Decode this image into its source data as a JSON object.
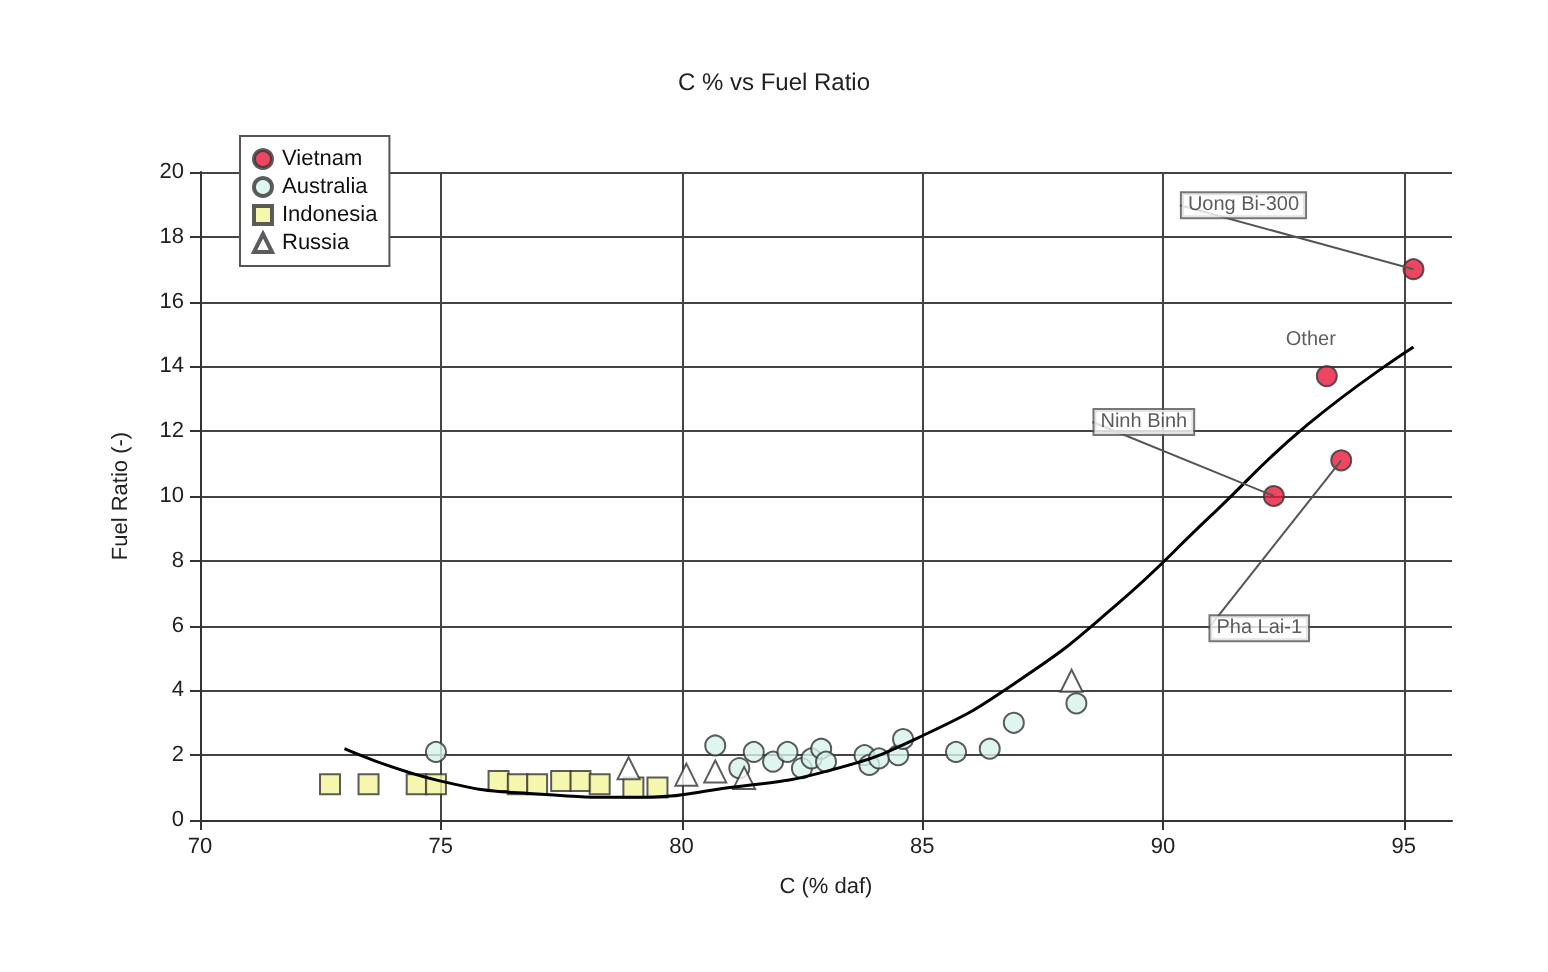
{
  "chart_data": {
    "type": "scatter",
    "title": "C % vs Fuel Ratio",
    "xlabel": "C (% daf)",
    "ylabel": "Fuel Ratio (-)",
    "xlim": [
      70,
      96
    ],
    "xticks": [
      70,
      75,
      80,
      85,
      90,
      95
    ],
    "ylim": [
      0,
      20
    ],
    "yticks": [
      0,
      2,
      4,
      6,
      8,
      10,
      12,
      14,
      16,
      18,
      20
    ],
    "grid": true,
    "legend": "top left",
    "series": [
      {
        "name": "Vietnam",
        "color": "#e8183a",
        "marker": "circle",
        "x": [
          95.2,
          93.4,
          92.3,
          93.7
        ],
        "values": [
          17.0,
          13.7,
          10.0,
          11.1
        ]
      },
      {
        "name": "Australia",
        "color": "#d6f2ec",
        "marker": "circle",
        "x": [
          74.9,
          80.7,
          81.2,
          81.5,
          81.9,
          82.2,
          82.5,
          82.7,
          82.9,
          83.0,
          83.8,
          83.9,
          84.1,
          84.5,
          84.6,
          85.7,
          86.4,
          86.9,
          88.2
        ],
        "values": [
          2.1,
          2.3,
          1.6,
          2.1,
          1.8,
          2.1,
          1.6,
          1.9,
          2.2,
          1.8,
          2.0,
          1.7,
          1.9,
          2.0,
          2.5,
          2.1,
          2.2,
          3.0,
          3.6
        ]
      },
      {
        "name": "Indonesia",
        "color": "#f2f59a",
        "marker": "square",
        "x": [
          72.7,
          73.5,
          74.5,
          74.9,
          76.2,
          76.6,
          77.0,
          77.5,
          77.9,
          78.3,
          79.0,
          79.5
        ],
        "values": [
          1.1,
          1.1,
          1.1,
          1.1,
          1.2,
          1.1,
          1.1,
          1.2,
          1.2,
          1.1,
          1.0,
          1.0
        ]
      },
      {
        "name": "Russia",
        "color": "#ffffff",
        "marker": "triangle",
        "x": [
          78.9,
          80.1,
          80.7,
          81.3,
          88.1
        ],
        "values": [
          1.6,
          1.4,
          1.5,
          1.3,
          4.3
        ]
      },
      {
        "type": "line",
        "color": "#000000",
        "marker": "none",
        "x": [
          73,
          75,
          77,
          79,
          81,
          83,
          85,
          87,
          89,
          91,
          93,
          95.2
        ],
        "values": [
          2.2,
          1.2,
          0.8,
          0.7,
          1.0,
          1.5,
          2.6,
          4.3,
          6.6,
          9.4,
          12.2,
          14.6
        ]
      }
    ],
    "annotations": [
      {
        "text": "Uong Bi-300",
        "x": 95.2,
        "y": 17.0
      },
      {
        "text": "Other",
        "x": 93.4,
        "y": 13.7
      },
      {
        "text": "Ninh Binh",
        "x": 92.3,
        "y": 10.0
      },
      {
        "text": "Pha Lai-1",
        "x": 93.7,
        "y": 11.1
      }
    ]
  }
}
